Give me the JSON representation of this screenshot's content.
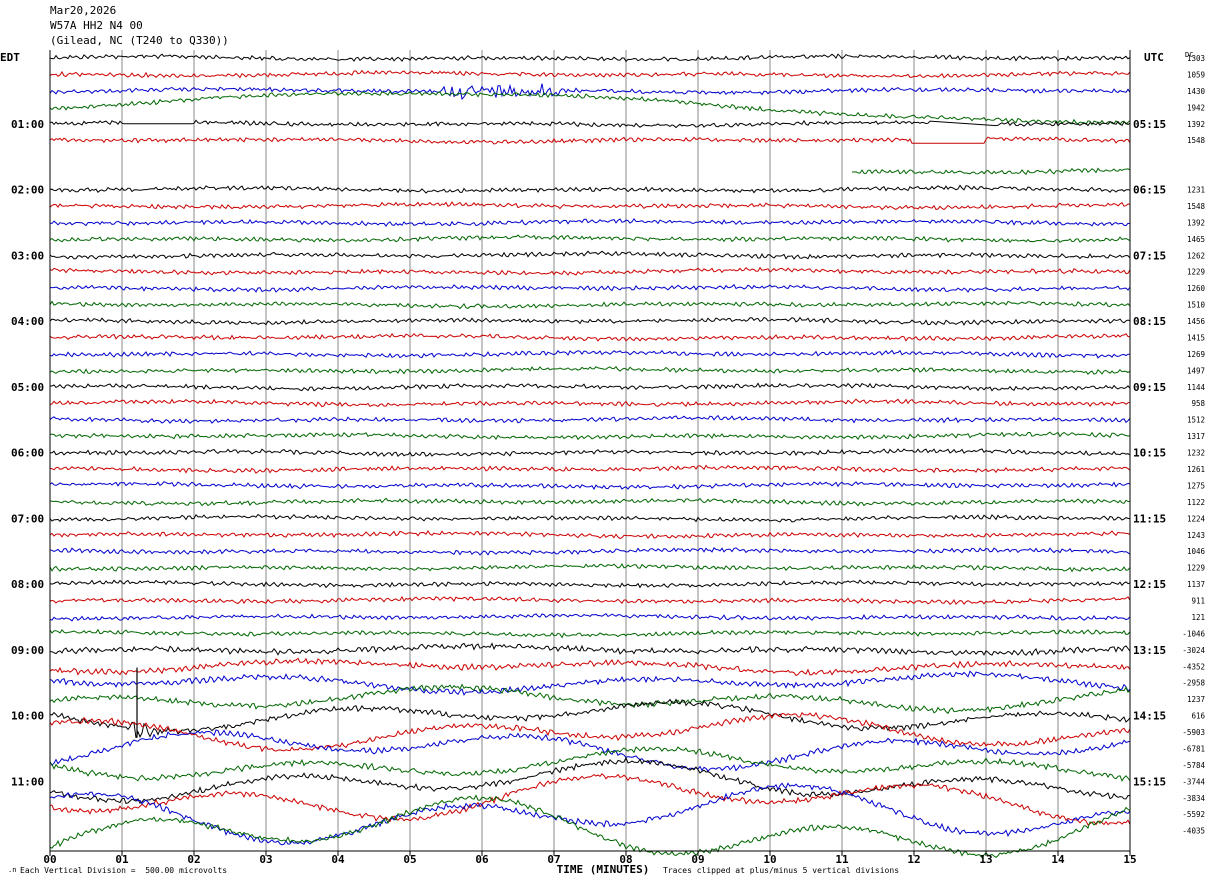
{
  "header": {
    "date": "Mar20,2026",
    "station": "W57A HH2 N4 00",
    "location": "(Gilead, NC (T240 to Q330))"
  },
  "colors": {
    "trace_cycle": [
      "#000000",
      "#cc0000",
      "#0000cc",
      "#006600"
    ],
    "grid": "#888888",
    "axis": "#000000"
  },
  "chart_data": {
    "type": "line",
    "title": "",
    "left_axis_label": "EDT",
    "right_axis_label": "UTC",
    "dc_label": "DC",
    "xlabel": "TIME (MINUTES)",
    "xlim": [
      0,
      15
    ],
    "x_ticks": [
      "00",
      "01",
      "02",
      "03",
      "04",
      "05",
      "06",
      "07",
      "08",
      "09",
      "10",
      "11",
      "12",
      "13",
      "14",
      "15"
    ],
    "left_hour_labels": [
      {
        "label": "01:00",
        "row": 4
      },
      {
        "label": "02:00",
        "row": 8
      },
      {
        "label": "03:00",
        "row": 12
      },
      {
        "label": "04:00",
        "row": 16
      },
      {
        "label": "05:00",
        "row": 20
      },
      {
        "label": "06:00",
        "row": 24
      },
      {
        "label": "07:00",
        "row": 28
      },
      {
        "label": "08:00",
        "row": 32
      },
      {
        "label": "09:00",
        "row": 36
      },
      {
        "label": "10:00",
        "row": 40
      },
      {
        "label": "11:00",
        "row": 44
      }
    ],
    "right_hour_labels": [
      {
        "label": "05:15",
        "row": 4
      },
      {
        "label": "06:15",
        "row": 8
      },
      {
        "label": "07:15",
        "row": 12
      },
      {
        "label": "08:15",
        "row": 16
      },
      {
        "label": "09:15",
        "row": 20
      },
      {
        "label": "10:15",
        "row": 24
      },
      {
        "label": "11:15",
        "row": 28
      },
      {
        "label": "12:15",
        "row": 32
      },
      {
        "label": "13:15",
        "row": 36
      },
      {
        "label": "14:15",
        "row": 40
      },
      {
        "label": "15:15",
        "row": 44
      }
    ],
    "dc_values": [
      "1303",
      "1059",
      "1430",
      "1942",
      "1392",
      "1548",
      "",
      "",
      "1231",
      "1548",
      "1392",
      "1465",
      "1262",
      "1229",
      "1260",
      "1510",
      "1456",
      "1415",
      "1269",
      "1497",
      "1144",
      "958",
      "1512",
      "1317",
      "1232",
      "1261",
      "1275",
      "1122",
      "1224",
      "1243",
      "1046",
      "1229",
      "1137",
      "911",
      "121",
      "-1046",
      "-3024",
      "-4352",
      "-2958",
      "1237",
      "616",
      "-5903",
      "-6781",
      "-5784",
      "-3744",
      "-3834",
      "-5592",
      "-4035"
    ],
    "row_count": 48,
    "footer_left": "Each Vertical Division =  500.00 microvolts",
    "footer_right": "Traces clipped at plus/minus 5 vertical divisions"
  }
}
